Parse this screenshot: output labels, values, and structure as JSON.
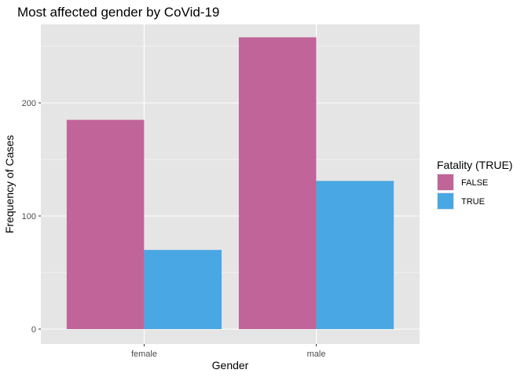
{
  "chart_data": {
    "type": "bar",
    "title": "Most affected gender by CoVid-19",
    "xlabel": "Gender",
    "ylabel": "Frequency of Cases",
    "categories": [
      "female",
      "male"
    ],
    "series": [
      {
        "name": "FALSE",
        "values": [
          185,
          258
        ],
        "color": "#C0649A"
      },
      {
        "name": "TRUE",
        "values": [
          70,
          131
        ],
        "color": "#49A7E3"
      }
    ],
    "ylim": [
      0,
      270
    ],
    "yticks": [
      0,
      100,
      200
    ],
    "grid": true,
    "legend": {
      "title": "Fatality (TRUE)",
      "position": "right"
    },
    "panel_background": "#E5E5E5",
    "grid_color": "#FFFFFF"
  }
}
